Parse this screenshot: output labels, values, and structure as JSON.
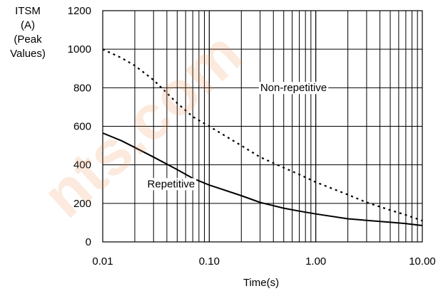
{
  "chart_data": {
    "type": "line",
    "ylabel": [
      "ITSM",
      "(A)",
      "(Peak",
      "Values)"
    ],
    "xlabel": "Time(s)",
    "x_scale": "log",
    "xlim": [
      0.01,
      10
    ],
    "ylim": [
      0,
      1200
    ],
    "x_ticks": [
      0.01,
      0.1,
      1,
      10
    ],
    "x_tick_labels": [
      "0.01",
      "0.10",
      "1.00",
      "10.00"
    ],
    "y_ticks": [
      0,
      200,
      400,
      600,
      800,
      1000,
      1200
    ],
    "y_tick_labels": [
      "0",
      "200",
      "400",
      "600",
      "800",
      "1000",
      "1200"
    ],
    "grid": true,
    "series": [
      {
        "name": "Non-repetitive",
        "style": "dotted",
        "color": "#000000",
        "x": [
          0.01,
          0.015,
          0.02,
          0.03,
          0.05,
          0.07,
          0.1,
          0.2,
          0.3,
          0.5,
          0.7,
          1,
          2,
          3,
          5,
          7,
          10
        ],
        "y": [
          1000,
          955,
          915,
          840,
          720,
          650,
          600,
          500,
          440,
          385,
          350,
          310,
          245,
          205,
          165,
          140,
          110
        ]
      },
      {
        "name": "Repetitive",
        "style": "solid",
        "color": "#000000",
        "x": [
          0.01,
          0.015,
          0.02,
          0.03,
          0.05,
          0.07,
          0.1,
          0.2,
          0.3,
          0.5,
          0.7,
          1,
          2,
          3,
          5,
          7,
          10
        ],
        "y": [
          565,
          525,
          490,
          440,
          375,
          330,
          295,
          240,
          205,
          175,
          160,
          145,
          120,
          112,
          102,
          95,
          85
        ]
      }
    ]
  },
  "watermark": "nts.com"
}
